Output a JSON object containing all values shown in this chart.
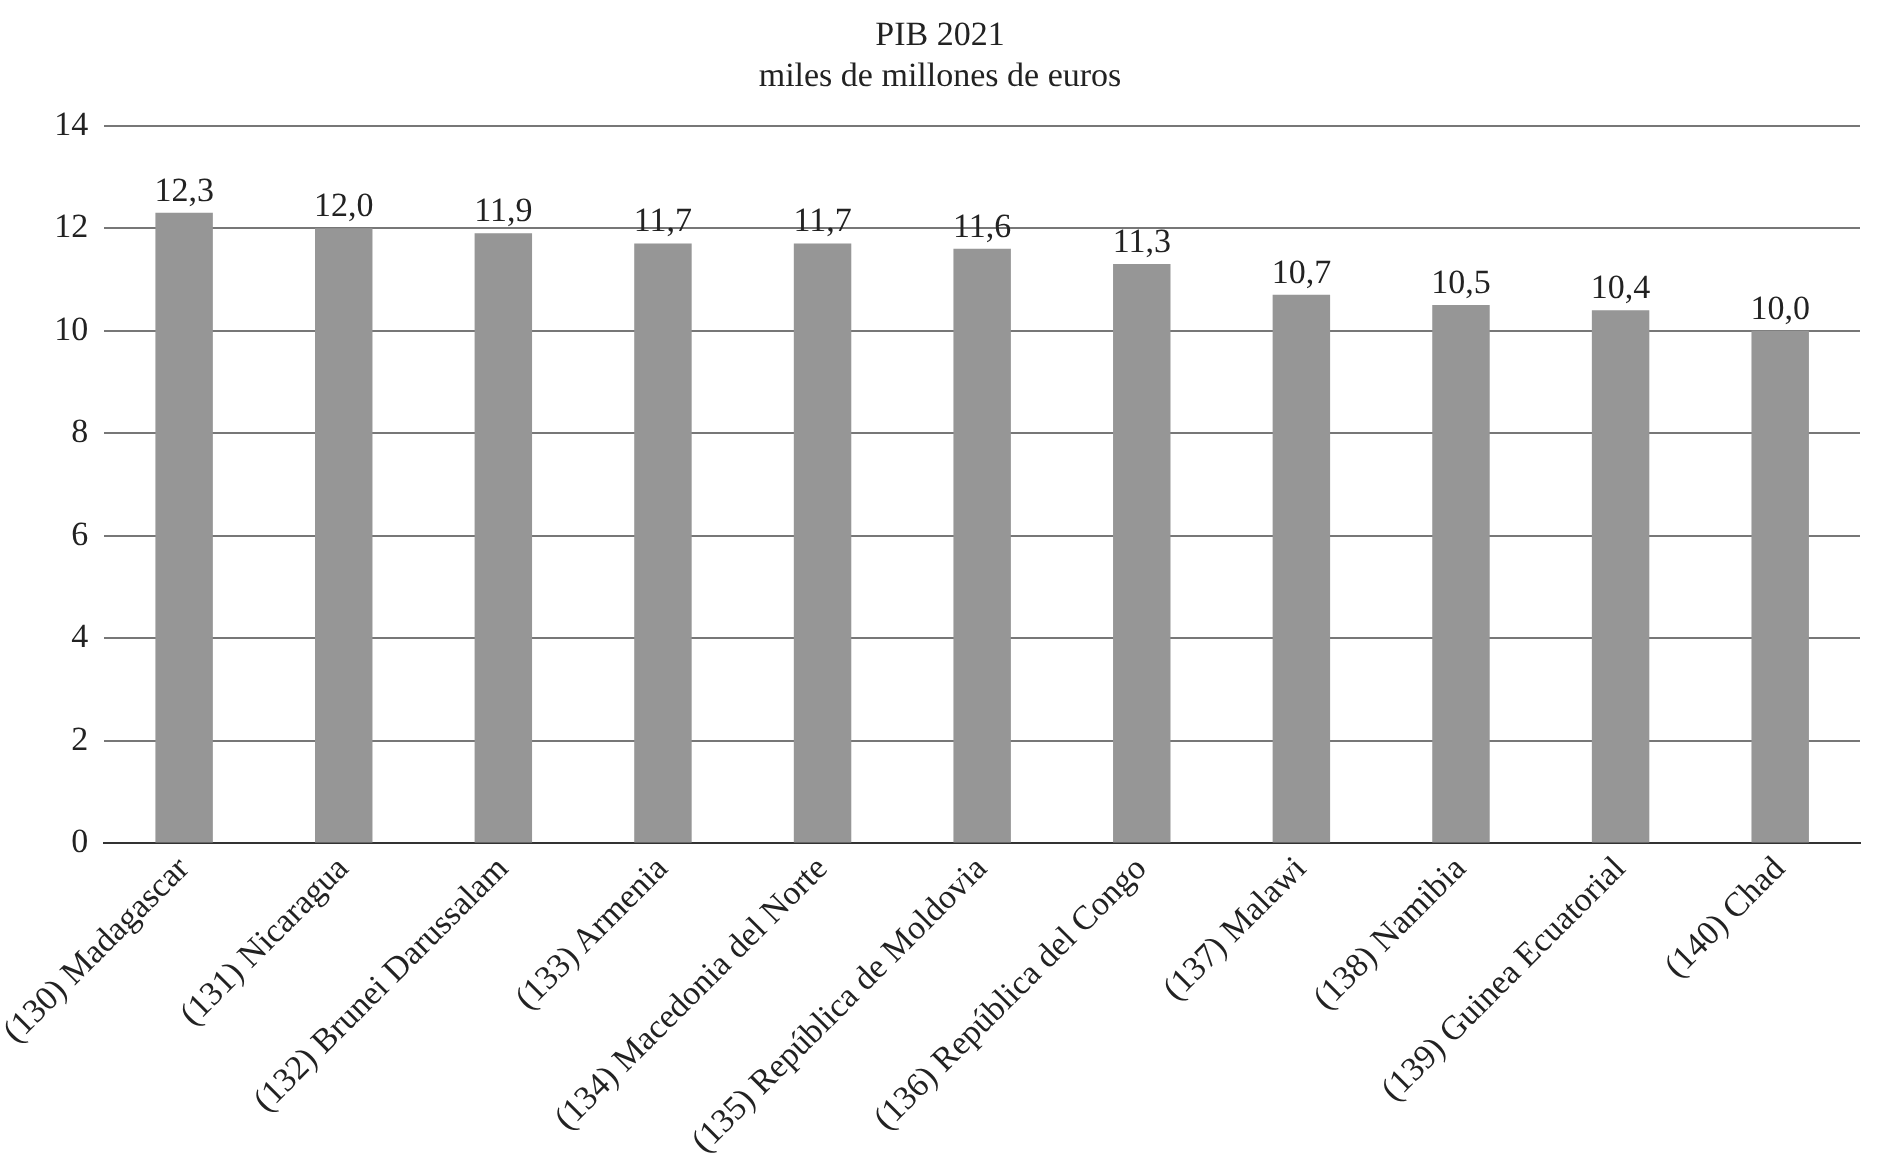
{
  "chart_data": {
    "type": "bar",
    "title": "PIB 2021",
    "subtitle": "miles de millones de euros",
    "categories": [
      "(130) Madagascar",
      "(131) Nicaragua",
      "(132) Brunei Darussalam",
      "(133) Armenia",
      "(134) Macedonia del Norte",
      "(135) República de Moldovia",
      "(136) República del Congo",
      "(137) Malawi",
      "(138) Namibia",
      "(139) Guinea Ecuatorial",
      "(140) Chad"
    ],
    "values": [
      12.3,
      12.0,
      11.9,
      11.7,
      11.7,
      11.6,
      11.3,
      10.7,
      10.5,
      10.4,
      10.0
    ],
    "value_labels": [
      "12,3",
      "12,0",
      "11,9",
      "11,7",
      "11,7",
      "11,6",
      "11,3",
      "10,7",
      "10,5",
      "10,4",
      "10,0"
    ],
    "color": "#969696",
    "ylim": [
      0,
      14
    ],
    "yticks": [
      0,
      2,
      4,
      6,
      8,
      10,
      12,
      14
    ],
    "grid": "y",
    "legend": false
  }
}
